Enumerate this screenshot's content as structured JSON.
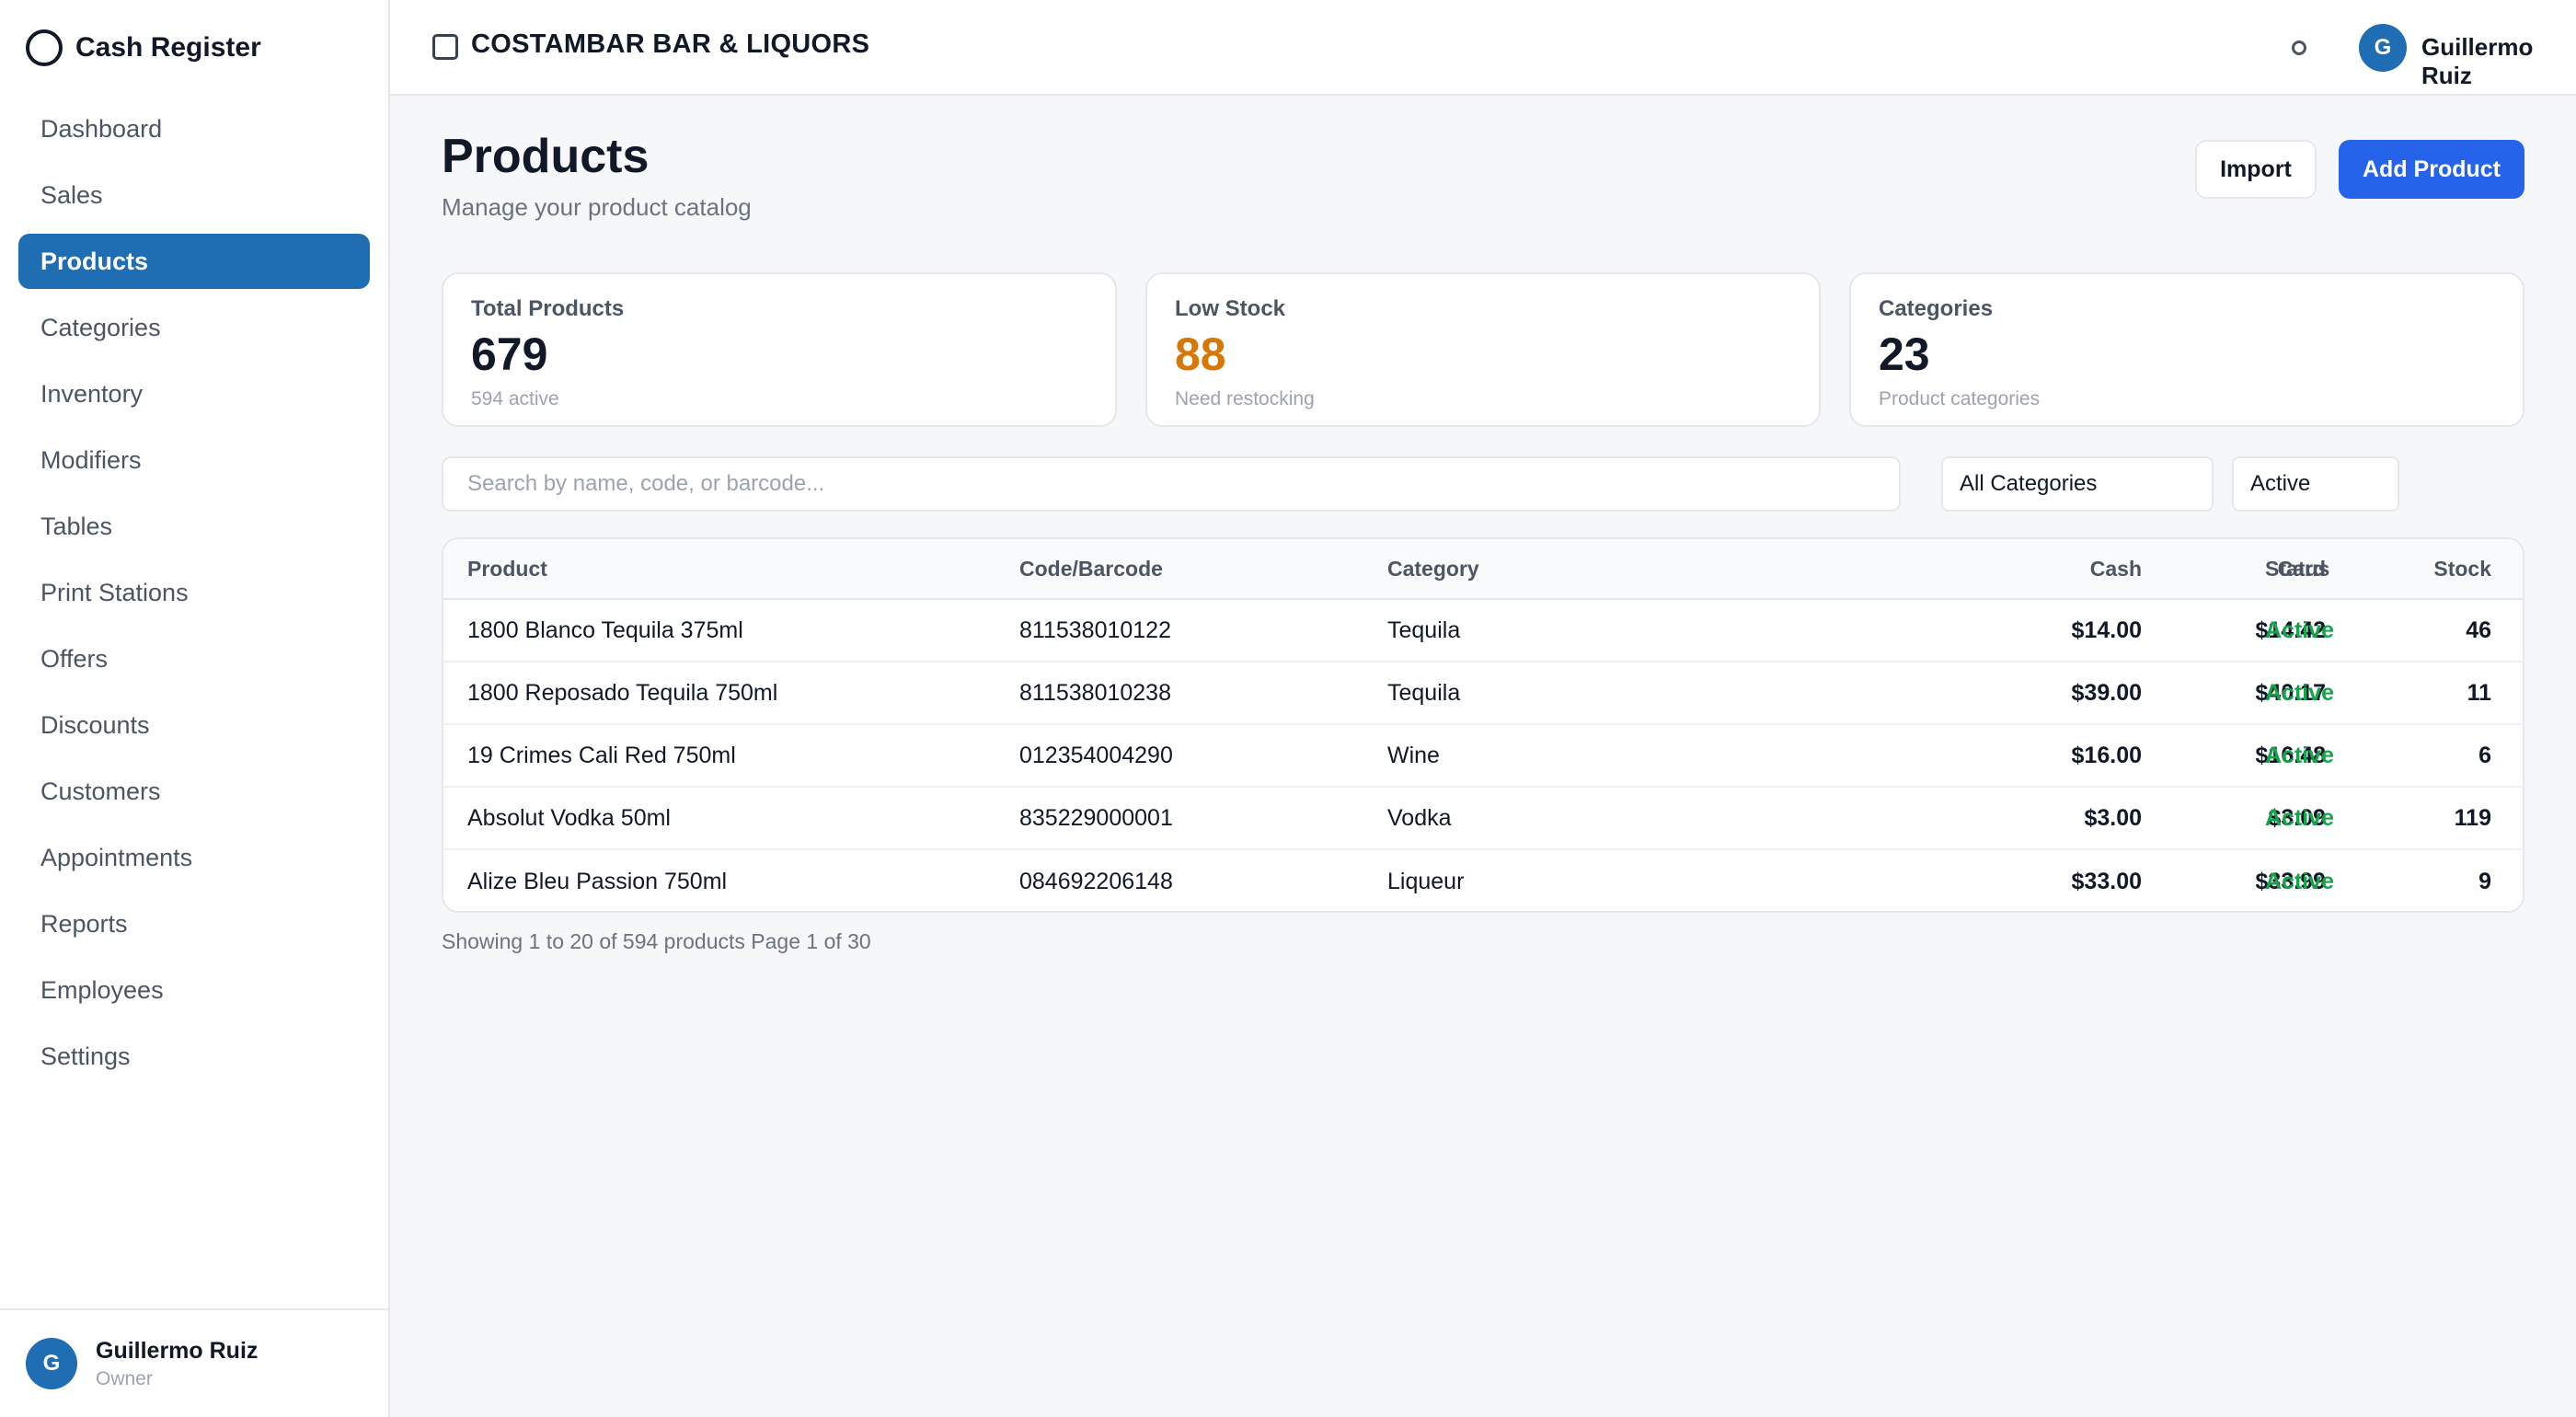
{
  "app": {
    "title": "Cash Register"
  },
  "sidebar": {
    "items": [
      {
        "label": "Dashboard",
        "active": false
      },
      {
        "label": "Sales",
        "active": false
      },
      {
        "label": "Products",
        "active": true
      },
      {
        "label": "Categories",
        "active": false
      },
      {
        "label": "Inventory",
        "active": false
      },
      {
        "label": "Modifiers",
        "active": false
      },
      {
        "label": "Tables",
        "active": false
      },
      {
        "label": "Print Stations",
        "active": false
      },
      {
        "label": "Offers",
        "active": false
      },
      {
        "label": "Discounts",
        "active": false
      },
      {
        "label": "Customers",
        "active": false
      },
      {
        "label": "Appointments",
        "active": false
      },
      {
        "label": "Reports",
        "active": false
      },
      {
        "label": "Employees",
        "active": false
      },
      {
        "label": "Settings",
        "active": false
      }
    ],
    "user": {
      "initial": "G",
      "name": "Guillermo Ruiz",
      "role": "Owner"
    }
  },
  "header": {
    "store_name": "COSTAMBAR BAR & LIQUORS",
    "user_initial": "G",
    "user_name": "Guillermo Ruiz"
  },
  "page": {
    "title": "Products",
    "subtitle": "Manage your product catalog",
    "import_label": "Import",
    "add_label": "Add Product"
  },
  "stats": [
    {
      "label": "Total Products",
      "value": "679",
      "note": "594 active"
    },
    {
      "label": "Low Stock",
      "value": "88",
      "note": "Need restocking"
    },
    {
      "label": "Categories",
      "value": "23",
      "note": "Product categories"
    }
  ],
  "filters": {
    "search_placeholder": "Search by name, code, or barcode...",
    "category": "All Categories",
    "status": "Active"
  },
  "table": {
    "headers": {
      "product": "Product",
      "code": "Code/Barcode",
      "category": "Category",
      "cash": "Cash",
      "card": "Card",
      "stock": "Stock",
      "status": "Status"
    },
    "rows": [
      {
        "product": "1800 Blanco Tequila 375ml",
        "code": "811538010122",
        "category": "Tequila",
        "cash": "$14.00",
        "card": "$14.42",
        "stock": "46",
        "status": "Active"
      },
      {
        "product": "1800 Reposado Tequila 750ml",
        "code": "811538010238",
        "category": "Tequila",
        "cash": "$39.00",
        "card": "$40.17",
        "stock": "11",
        "status": "Active"
      },
      {
        "product": "19 Crimes Cali Red 750ml",
        "code": "012354004290",
        "category": "Wine",
        "cash": "$16.00",
        "card": "$16.48",
        "stock": "6",
        "status": "Active"
      },
      {
        "product": "Absolut Vodka 50ml",
        "code": "835229000001",
        "category": "Vodka",
        "cash": "$3.00",
        "card": "$3.09",
        "stock": "119",
        "status": "Active"
      },
      {
        "product": "Alize Bleu Passion 750ml",
        "code": "084692206148",
        "category": "Liqueur",
        "cash": "$33.00",
        "card": "$33.99",
        "stock": "9",
        "status": "Active"
      }
    ]
  },
  "pagination": {
    "text": "Showing 1 to 20 of 594 products Page 1 of 30"
  },
  "colors": {
    "primary": "#2563eb",
    "nav_active": "#1f6db3",
    "warning": "#d97706",
    "success": "#16a34a"
  }
}
